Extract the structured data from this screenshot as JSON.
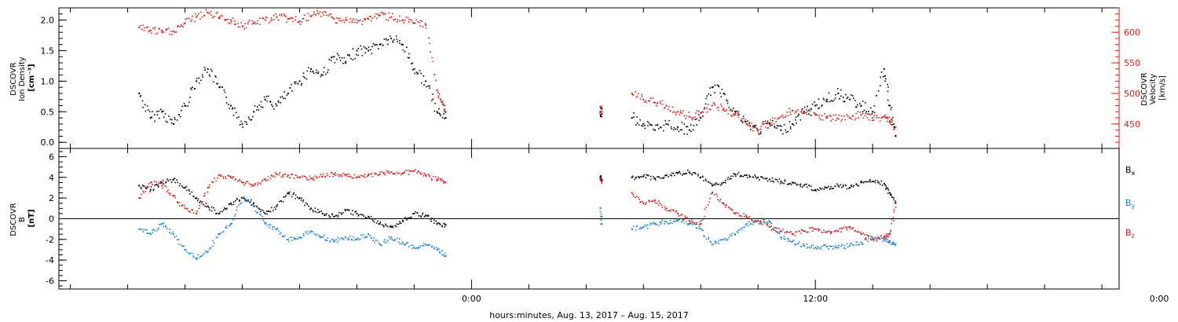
{
  "chart_data": [
    {
      "id": "plasma",
      "type": "scatter",
      "ylabel_lines": [
        "DSCOVR",
        "Ion Density"
      ],
      "ylabel_unit": "[cm⁻³]",
      "y2label_lines": [
        "DSCOVR",
        "Velocity"
      ],
      "y2label_unit": "[km/s]",
      "ylim": [
        -0.1,
        2.2
      ],
      "y2lim": [
        410,
        640
      ],
      "yticks": [
        0.0,
        0.5,
        1.0,
        1.5,
        2.0
      ],
      "ytick_labels": [
        "0.0",
        "0.5",
        "1.0",
        "1.5",
        "2.0"
      ],
      "y2ticks": [
        450,
        500,
        550,
        600
      ],
      "y2tick_labels": [
        "450",
        "500",
        "550",
        "600"
      ],
      "colors": {
        "density": "#000000",
        "velocity": "#e31a1c"
      },
      "series": [
        {
          "key": "density",
          "color": "#000000",
          "axis": "left",
          "segments": [
            {
              "t": [
                -11.6,
                -11.2,
                -10.8,
                -10.4,
                -10.0,
                -9.6,
                -9.2,
                -8.8,
                -8.4,
                -8.0,
                -7.6,
                -7.2,
                -6.8,
                -6.4,
                -6.0,
                -5.6,
                -5.2,
                -4.8,
                -4.4,
                -4.0,
                -3.6,
                -3.2,
                -2.8,
                -2.4,
                -2.0,
                -1.6,
                -1.2,
                -0.9
              ],
              "v": [
                0.8,
                0.4,
                0.5,
                0.3,
                0.6,
                1.0,
                1.2,
                0.9,
                0.6,
                0.3,
                0.5,
                0.7,
                0.6,
                0.8,
                1.0,
                1.2,
                1.1,
                1.4,
                1.3,
                1.5,
                1.5,
                1.6,
                1.7,
                1.6,
                1.2,
                1.0,
                0.5,
                0.4
              ]
            },
            {
              "t": [
                4.5,
                4.55
              ],
              "v": [
                0.45,
                0.55
              ]
            },
            {
              "t": [
                5.6,
                6.0,
                6.4,
                6.8,
                7.2,
                7.6,
                8.0,
                8.4,
                8.8,
                9.2,
                9.6,
                10.0,
                10.4,
                10.8,
                11.2,
                11.6,
                12.0,
                12.4,
                12.8,
                13.2,
                13.6,
                14.0,
                14.4,
                14.6,
                14.8
              ],
              "v": [
                0.4,
                0.3,
                0.2,
                0.3,
                0.25,
                0.2,
                0.4,
                0.9,
                0.8,
                0.5,
                0.3,
                0.2,
                0.3,
                0.2,
                0.3,
                0.5,
                0.6,
                0.7,
                0.8,
                0.7,
                0.6,
                0.5,
                1.2,
                0.6,
                0.1
              ]
            }
          ]
        },
        {
          "key": "velocity",
          "color": "#e31a1c",
          "axis": "right",
          "segments": [
            {
              "t": [
                -11.6,
                -11.2,
                -10.8,
                -10.4,
                -10.0,
                -9.6,
                -9.2,
                -8.8,
                -8.4,
                -8.0,
                -7.6,
                -7.2,
                -6.8,
                -6.4,
                -6.0,
                -5.6,
                -5.2,
                -4.8,
                -4.4,
                -4.0,
                -3.6,
                -3.2,
                -2.8,
                -2.4,
                -2.0,
                -1.6,
                -1.2,
                -1.0,
                -0.9
              ],
              "v": [
                608,
                603,
                600,
                602,
                615,
                625,
                632,
                625,
                620,
                610,
                615,
                620,
                625,
                622,
                618,
                626,
                632,
                622,
                620,
                616,
                622,
                628,
                625,
                620,
                615,
                612,
                505,
                482,
                470
              ]
            },
            {
              "t": [
                4.5,
                4.55
              ],
              "v": [
                478,
                470
              ]
            },
            {
              "t": [
                5.6,
                6.0,
                6.4,
                6.8,
                7.2,
                7.6,
                8.0,
                8.4,
                8.8,
                9.2,
                9.6,
                10.0,
                10.4,
                10.8,
                11.2,
                11.6,
                12.0,
                12.4,
                12.8,
                13.2,
                13.6,
                14.0,
                14.4,
                14.6,
                14.8
              ],
              "v": [
                500,
                490,
                485,
                480,
                470,
                462,
                468,
                480,
                475,
                465,
                450,
                440,
                452,
                462,
                472,
                468,
                465,
                460,
                458,
                460,
                465,
                460,
                462,
                455,
                445
              ]
            }
          ]
        }
      ]
    },
    {
      "id": "magnetic",
      "type": "scatter",
      "ylabel_lines": [
        "DSCOVR",
        "B"
      ],
      "ylabel_unit": "[nT]",
      "ylim": [
        -6.8,
        6.8
      ],
      "yticks": [
        -6,
        -4,
        -2,
        0,
        2,
        4,
        6
      ],
      "ytick_labels": [
        "-6",
        "-4",
        "-2",
        "0",
        "2",
        "4",
        "6"
      ],
      "zero_line": true,
      "legend": [
        {
          "base": "B",
          "sub": "x",
          "color": "#000000"
        },
        {
          "base": "B",
          "sub": "y",
          "color": "#1a7fd6"
        },
        {
          "base": "B",
          "sub": "z",
          "color": "#e31a1c"
        }
      ],
      "colors": {
        "bx": "#000000",
        "by": "#1a7fd6",
        "bz": "#e31a1c"
      },
      "series": [
        {
          "key": "bx",
          "color": "#000000",
          "segments": [
            {
              "t": [
                -11.6,
                -11.2,
                -10.8,
                -10.4,
                -10.0,
                -9.6,
                -9.2,
                -8.8,
                -8.4,
                -8.0,
                -7.6,
                -7.2,
                -6.8,
                -6.4,
                -6.0,
                -5.6,
                -5.2,
                -4.8,
                -4.4,
                -4.0,
                -3.6,
                -3.2,
                -2.8,
                -2.4,
                -2.0,
                -1.6,
                -1.2,
                -0.9
              ],
              "v": [
                3.2,
                2.8,
                3.5,
                3.8,
                3.0,
                2.0,
                1.2,
                0.5,
                1.5,
                2.0,
                1.5,
                0.5,
                1.2,
                2.5,
                2.0,
                1.0,
                0.5,
                0.2,
                0.8,
                0.5,
                0.2,
                -0.5,
                -0.8,
                -0.2,
                0.5,
                0.3,
                -0.5,
                -0.6
              ]
            },
            {
              "t": [
                4.5,
                4.55
              ],
              "v": [
                4.0,
                3.8
              ]
            },
            {
              "t": [
                5.6,
                6.0,
                6.4,
                6.8,
                7.2,
                7.6,
                8.0,
                8.4,
                8.8,
                9.2,
                9.6,
                10.0,
                10.4,
                10.8,
                11.2,
                11.6,
                12.0,
                12.4,
                12.8,
                13.2,
                13.6,
                14.0,
                14.4,
                14.6,
                14.8
              ],
              "v": [
                4.0,
                4.1,
                3.9,
                4.2,
                4.4,
                4.5,
                4.0,
                3.2,
                3.5,
                4.3,
                4.2,
                4.0,
                3.8,
                3.6,
                3.5,
                3.2,
                2.8,
                3.0,
                3.2,
                3.0,
                3.5,
                3.6,
                3.4,
                2.5,
                1.5
              ]
            }
          ]
        },
        {
          "key": "by",
          "color": "#1a7fd6",
          "segments": [
            {
              "t": [
                -11.6,
                -11.2,
                -10.8,
                -10.4,
                -10.0,
                -9.6,
                -9.2,
                -8.8,
                -8.4,
                -8.0,
                -7.6,
                -7.2,
                -6.8,
                -6.4,
                -6.0,
                -5.6,
                -5.2,
                -4.8,
                -4.4,
                -4.0,
                -3.6,
                -3.2,
                -2.8,
                -2.4,
                -2.0,
                -1.6,
                -1.2,
                -0.9
              ],
              "v": [
                -1.0,
                -1.5,
                -0.5,
                -1.5,
                -3.0,
                -3.8,
                -3.2,
                -1.5,
                -0.5,
                2.0,
                1.2,
                -0.5,
                -1.0,
                -2.0,
                -1.8,
                -1.2,
                -1.8,
                -2.2,
                -1.8,
                -2.0,
                -1.5,
                -2.5,
                -1.8,
                -2.3,
                -2.8,
                -2.5,
                -3.0,
                -3.6
              ]
            },
            {
              "t": [
                4.5,
                4.55
              ],
              "v": [
                1.0,
                -0.5
              ]
            },
            {
              "t": [
                5.6,
                6.0,
                6.4,
                6.8,
                7.2,
                7.6,
                8.0,
                8.4,
                8.8,
                9.2,
                9.6,
                10.0,
                10.4,
                10.8,
                11.2,
                11.6,
                12.0,
                12.4,
                12.8,
                13.2,
                13.6,
                14.0,
                14.4,
                14.6,
                14.8
              ],
              "v": [
                -1.0,
                -0.8,
                -0.5,
                -0.3,
                -0.2,
                -0.5,
                -1.0,
                -2.5,
                -2.0,
                -1.5,
                -0.5,
                -0.2,
                -0.3,
                -1.8,
                -2.2,
                -2.6,
                -2.8,
                -2.7,
                -2.8,
                -2.6,
                -2.3,
                -1.8,
                -2.0,
                -2.2,
                -2.5
              ]
            }
          ]
        },
        {
          "key": "bz",
          "color": "#e31a1c",
          "segments": [
            {
              "t": [
                -11.6,
                -11.2,
                -10.8,
                -10.4,
                -10.0,
                -9.6,
                -9.2,
                -8.8,
                -8.4,
                -8.0,
                -7.6,
                -7.2,
                -6.8,
                -6.4,
                -6.0,
                -5.6,
                -5.2,
                -4.8,
                -4.4,
                -4.0,
                -3.6,
                -3.2,
                -2.8,
                -2.4,
                -2.0,
                -1.6,
                -1.2,
                -0.9
              ],
              "v": [
                2.0,
                3.5,
                3.2,
                2.2,
                1.0,
                0.5,
                3.0,
                4.2,
                4.0,
                3.5,
                3.2,
                3.8,
                4.3,
                4.2,
                4.0,
                3.9,
                4.1,
                4.3,
                4.2,
                4.0,
                4.2,
                4.3,
                4.5,
                4.4,
                4.6,
                4.2,
                3.8,
                3.5
              ]
            },
            {
              "t": [
                4.5,
                4.55
              ],
              "v": [
                3.8,
                3.6
              ]
            },
            {
              "t": [
                5.6,
                6.0,
                6.4,
                6.8,
                7.2,
                7.6,
                8.0,
                8.4,
                8.8,
                9.2,
                9.6,
                10.0,
                10.4,
                10.8,
                11.2,
                11.6,
                12.0,
                12.4,
                12.8,
                13.2,
                13.6,
                14.0,
                14.4,
                14.6,
                14.8
              ],
              "v": [
                2.5,
                1.5,
                1.8,
                1.0,
                0.5,
                -0.2,
                -0.5,
                2.5,
                1.5,
                0.5,
                0.2,
                -0.2,
                -0.8,
                -1.2,
                -1.5,
                -1.2,
                -1.0,
                -1.3,
                -1.2,
                -0.8,
                -1.5,
                -2.0,
                -1.8,
                -1.5,
                1.5
              ]
            }
          ]
        }
      ]
    }
  ],
  "x_axis": {
    "label": "hours:minutes, Aug. 13, 2017 – Aug. 15, 2017",
    "range_hours": [
      -14.4,
      22.6
    ],
    "major_ticks": [
      0,
      12,
      24
    ],
    "major_tick_labels": [
      "0:00",
      "12:00",
      "0:00"
    ],
    "minor_step_hours": 2
  }
}
